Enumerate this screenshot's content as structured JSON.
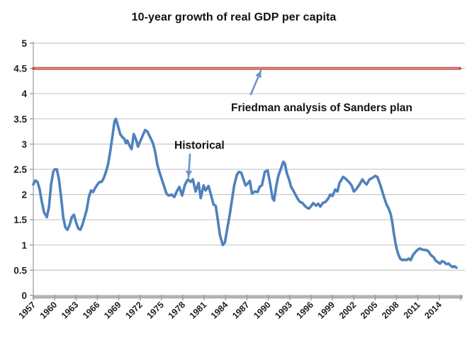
{
  "title": "10-year growth of real GDP per capita",
  "annotations": {
    "historical": {
      "label": "Historical"
    },
    "friedman": {
      "label": "Friedman analysis of Sanders plan"
    }
  },
  "colors": {
    "historical_line": "#4f81bd",
    "friedman_line": "#c0504d",
    "friedman_line_highlight": "#dd958d",
    "gridline": "#c9c9c9",
    "axis": "#b3b3b3",
    "tick": "#9b9b9b",
    "axis_label": "#1f1f1f",
    "arrow": "#6d94c6",
    "text": "#141414",
    "background": "#ffffff"
  },
  "chart_data": {
    "type": "line",
    "title": "10-year growth of real GDP per capita",
    "xlabel": "",
    "ylabel": "",
    "ylim": [
      0,
      5
    ],
    "y_tick_step": 0.5,
    "y_tick_labels": [
      "0",
      "0.5",
      "1",
      "1.5",
      "2",
      "2.5",
      "3",
      "3.5",
      "4",
      "4.5",
      "5"
    ],
    "x_tick_labels": [
      "1957",
      "1960",
      "1963",
      "1966",
      "1969",
      "1972",
      "1975",
      "1978",
      "1981",
      "1984",
      "1987",
      "1990",
      "1993",
      "1996",
      "1999",
      "2002",
      "2005",
      "2008",
      "2011",
      "2014"
    ],
    "x_tick_interval_years": 3,
    "x_start_year": 1957,
    "grid": true,
    "legend_position": "none",
    "series": [
      {
        "name": "Historical",
        "type": "line",
        "color": "#4f81bd",
        "points": [
          [
            1957.0,
            2.2
          ],
          [
            1957.3,
            2.28
          ],
          [
            1957.6,
            2.25
          ],
          [
            1957.9,
            2.1
          ],
          [
            1958.2,
            1.85
          ],
          [
            1958.5,
            1.65
          ],
          [
            1958.9,
            1.55
          ],
          [
            1959.2,
            1.75
          ],
          [
            1959.5,
            2.2
          ],
          [
            1959.8,
            2.45
          ],
          [
            1960.0,
            2.5
          ],
          [
            1960.3,
            2.5
          ],
          [
            1960.6,
            2.3
          ],
          [
            1960.9,
            1.95
          ],
          [
            1961.2,
            1.55
          ],
          [
            1961.5,
            1.35
          ],
          [
            1961.8,
            1.3
          ],
          [
            1962.1,
            1.4
          ],
          [
            1962.4,
            1.55
          ],
          [
            1962.7,
            1.6
          ],
          [
            1963.0,
            1.45
          ],
          [
            1963.3,
            1.33
          ],
          [
            1963.6,
            1.3
          ],
          [
            1963.9,
            1.4
          ],
          [
            1964.2,
            1.55
          ],
          [
            1964.5,
            1.7
          ],
          [
            1964.8,
            1.95
          ],
          [
            1965.1,
            2.08
          ],
          [
            1965.4,
            2.05
          ],
          [
            1965.7,
            2.13
          ],
          [
            1966.0,
            2.2
          ],
          [
            1966.3,
            2.25
          ],
          [
            1966.6,
            2.25
          ],
          [
            1966.9,
            2.33
          ],
          [
            1967.2,
            2.45
          ],
          [
            1967.5,
            2.6
          ],
          [
            1967.8,
            2.85
          ],
          [
            1968.1,
            3.15
          ],
          [
            1968.4,
            3.45
          ],
          [
            1968.6,
            3.5
          ],
          [
            1968.9,
            3.35
          ],
          [
            1969.2,
            3.2
          ],
          [
            1969.5,
            3.14
          ],
          [
            1969.8,
            3.1
          ],
          [
            1970.0,
            3.02
          ],
          [
            1970.2,
            3.07
          ],
          [
            1970.5,
            2.97
          ],
          [
            1970.8,
            2.9
          ],
          [
            1971.1,
            3.2
          ],
          [
            1971.4,
            3.1
          ],
          [
            1971.7,
            2.95
          ],
          [
            1972.0,
            3.05
          ],
          [
            1972.3,
            3.15
          ],
          [
            1972.7,
            3.28
          ],
          [
            1973.0,
            3.25
          ],
          [
            1973.4,
            3.14
          ],
          [
            1973.8,
            3.02
          ],
          [
            1974.1,
            2.85
          ],
          [
            1974.4,
            2.6
          ],
          [
            1974.7,
            2.45
          ],
          [
            1975.0,
            2.32
          ],
          [
            1975.4,
            2.15
          ],
          [
            1975.7,
            2.02
          ],
          [
            1976.0,
            1.98
          ],
          [
            1976.4,
            2.0
          ],
          [
            1976.8,
            1.95
          ],
          [
            1977.1,
            2.05
          ],
          [
            1977.5,
            2.15
          ],
          [
            1977.9,
            1.98
          ],
          [
            1978.3,
            2.2
          ],
          [
            1978.7,
            2.3
          ],
          [
            1979.1,
            2.25
          ],
          [
            1979.4,
            2.3
          ],
          [
            1979.8,
            2.06
          ],
          [
            1980.2,
            2.23
          ],
          [
            1980.5,
            1.93
          ],
          [
            1980.9,
            2.18
          ],
          [
            1981.2,
            2.08
          ],
          [
            1981.6,
            2.17
          ],
          [
            1981.9,
            2.02
          ],
          [
            1982.3,
            1.8
          ],
          [
            1982.6,
            1.78
          ],
          [
            1982.9,
            1.5
          ],
          [
            1983.2,
            1.2
          ],
          [
            1983.6,
            1.0
          ],
          [
            1983.9,
            1.05
          ],
          [
            1984.2,
            1.3
          ],
          [
            1984.6,
            1.62
          ],
          [
            1984.9,
            1.9
          ],
          [
            1985.2,
            2.18
          ],
          [
            1985.6,
            2.4
          ],
          [
            1985.9,
            2.45
          ],
          [
            1986.2,
            2.43
          ],
          [
            1986.5,
            2.3
          ],
          [
            1986.8,
            2.18
          ],
          [
            1987.1,
            2.22
          ],
          [
            1987.4,
            2.27
          ],
          [
            1987.7,
            2.02
          ],
          [
            1988.1,
            2.06
          ],
          [
            1988.5,
            2.05
          ],
          [
            1988.8,
            2.16
          ],
          [
            1989.1,
            2.18
          ],
          [
            1989.5,
            2.45
          ],
          [
            1989.9,
            2.48
          ],
          [
            1990.2,
            2.25
          ],
          [
            1990.6,
            1.92
          ],
          [
            1990.8,
            1.88
          ],
          [
            1991.1,
            2.16
          ],
          [
            1991.4,
            2.37
          ],
          [
            1991.8,
            2.53
          ],
          [
            1992.1,
            2.65
          ],
          [
            1992.3,
            2.62
          ],
          [
            1992.6,
            2.42
          ],
          [
            1992.9,
            2.3
          ],
          [
            1993.2,
            2.15
          ],
          [
            1993.5,
            2.08
          ],
          [
            1993.8,
            2.0
          ],
          [
            1994.1,
            1.92
          ],
          [
            1994.4,
            1.86
          ],
          [
            1994.8,
            1.83
          ],
          [
            1995.1,
            1.78
          ],
          [
            1995.4,
            1.74
          ],
          [
            1995.7,
            1.72
          ],
          [
            1996.0,
            1.77
          ],
          [
            1996.3,
            1.83
          ],
          [
            1996.7,
            1.78
          ],
          [
            1997.0,
            1.82
          ],
          [
            1997.3,
            1.76
          ],
          [
            1997.7,
            1.84
          ],
          [
            1998.0,
            1.85
          ],
          [
            1998.4,
            1.92
          ],
          [
            1998.7,
            2.0
          ],
          [
            1999.0,
            1.97
          ],
          [
            1999.4,
            2.1
          ],
          [
            1999.7,
            2.06
          ],
          [
            2000.0,
            2.23
          ],
          [
            2000.5,
            2.35
          ],
          [
            2000.8,
            2.32
          ],
          [
            2001.3,
            2.25
          ],
          [
            2001.7,
            2.18
          ],
          [
            2002.0,
            2.06
          ],
          [
            2002.3,
            2.1
          ],
          [
            2002.8,
            2.2
          ],
          [
            2003.2,
            2.3
          ],
          [
            2003.5,
            2.24
          ],
          [
            2003.8,
            2.2
          ],
          [
            2004.2,
            2.3
          ],
          [
            2004.5,
            2.32
          ],
          [
            2005.0,
            2.37
          ],
          [
            2005.3,
            2.35
          ],
          [
            2005.7,
            2.2
          ],
          [
            2006.0,
            2.06
          ],
          [
            2006.3,
            1.92
          ],
          [
            2006.6,
            1.8
          ],
          [
            2006.9,
            1.72
          ],
          [
            2007.2,
            1.6
          ],
          [
            2007.4,
            1.45
          ],
          [
            2007.6,
            1.25
          ],
          [
            2007.8,
            1.08
          ],
          [
            2008.0,
            0.94
          ],
          [
            2008.2,
            0.83
          ],
          [
            2008.5,
            0.73
          ],
          [
            2008.8,
            0.7
          ],
          [
            2009.1,
            0.71
          ],
          [
            2009.4,
            0.7
          ],
          [
            2009.7,
            0.73
          ],
          [
            2010.0,
            0.7
          ],
          [
            2010.3,
            0.8
          ],
          [
            2010.7,
            0.87
          ],
          [
            2011.0,
            0.91
          ],
          [
            2011.3,
            0.93
          ],
          [
            2011.6,
            0.91
          ],
          [
            2011.9,
            0.9
          ],
          [
            2012.2,
            0.9
          ],
          [
            2012.5,
            0.87
          ],
          [
            2012.8,
            0.8
          ],
          [
            2013.2,
            0.76
          ],
          [
            2013.5,
            0.69
          ],
          [
            2013.8,
            0.66
          ],
          [
            2014.1,
            0.63
          ],
          [
            2014.4,
            0.68
          ],
          [
            2014.7,
            0.66
          ],
          [
            2015.0,
            0.62
          ],
          [
            2015.3,
            0.63
          ],
          [
            2015.6,
            0.59
          ],
          [
            2015.9,
            0.56
          ],
          [
            2016.1,
            0.58
          ],
          [
            2016.4,
            0.55
          ]
        ]
      },
      {
        "name": "Friedman analysis of Sanders plan",
        "type": "hline",
        "color": "#c0504d",
        "value": 4.5,
        "x_start_year": 1957,
        "x_end_year": 2016.9
      }
    ]
  }
}
